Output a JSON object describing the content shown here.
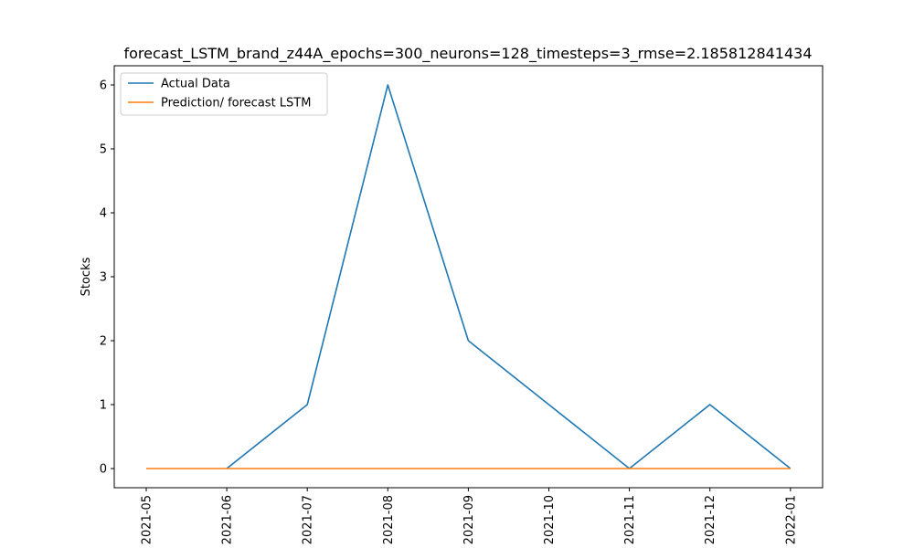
{
  "chart_data": {
    "type": "line",
    "title": "forecast_LSTM_brand_z44A_epochs=300_neurons=128_timesteps=3_rmse=2.185812841434",
    "xlabel": "",
    "ylabel": "Stocks",
    "x_ticks": [
      "2021-05",
      "2021-06",
      "2021-07",
      "2021-08",
      "2021-09",
      "2021-10",
      "2021-11",
      "2021-12",
      "2022-01"
    ],
    "y_ticks": [
      "0",
      "1",
      "2",
      "3",
      "4",
      "5",
      "6"
    ],
    "ylim": [
      -0.3,
      6.3
    ],
    "grid": false,
    "legend_position": "top-left",
    "series": [
      {
        "name": "Actual Data",
        "color": "#1f77b4",
        "x": [
          "2021-06",
          "2021-07",
          "2021-08",
          "2021-09",
          "2021-10",
          "2021-11",
          "2021-12",
          "2022-01"
        ],
        "values": [
          0,
          1,
          6,
          2,
          1,
          0,
          1,
          0
        ]
      },
      {
        "name": "Prediction/ forecast LSTM",
        "color": "#ff7f0e",
        "x": [
          "2021-05",
          "2021-06",
          "2021-07",
          "2021-08",
          "2021-09",
          "2021-10",
          "2021-11",
          "2021-12",
          "2022-01"
        ],
        "values": [
          0,
          0,
          0,
          0,
          0,
          0,
          0,
          0,
          0
        ]
      }
    ]
  }
}
